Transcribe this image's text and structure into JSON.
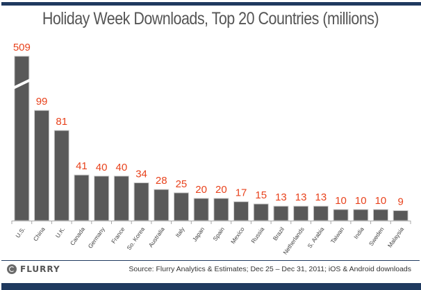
{
  "colors": {
    "bar": "#595959",
    "value_label": "#e8421c",
    "brand_bar": "#1f3a5f"
  },
  "chart_data": {
    "type": "bar",
    "title": "Holiday Week Downloads, Top 20 Countries (millions)",
    "xlabel": "",
    "ylabel": "",
    "grid": false,
    "axis_break": {
      "category": "U.S.",
      "note": "bar truncated with break mark"
    },
    "categories": [
      "U.S.",
      "China",
      "U.K.",
      "Canada",
      "Germany",
      "France",
      "So. Korea",
      "Australia",
      "Italy",
      "Japan",
      "Spain",
      "Mexico",
      "Russia",
      "Brazil",
      "Netherlands",
      "S. Arabia",
      "Taiwan",
      "India",
      "Sweden",
      "Malaysia"
    ],
    "values": [
      509,
      99,
      81,
      41,
      40,
      40,
      34,
      28,
      25,
      20,
      20,
      17,
      15,
      13,
      13,
      13,
      10,
      10,
      10,
      9
    ],
    "value_labels": [
      "509",
      "99",
      "81",
      "41",
      "40",
      "40",
      "34",
      "28",
      "25",
      "20",
      "20",
      "17",
      "15",
      "13",
      "13",
      "13",
      "10",
      "10",
      "10",
      "9"
    ],
    "ylim": [
      0,
      145
    ]
  },
  "footer": {
    "logo_text": "FLURRY",
    "source": "Source: Flurry Analytics & Estimates; Dec 25 – Dec 31, 2011; iOS & Android downloads"
  }
}
